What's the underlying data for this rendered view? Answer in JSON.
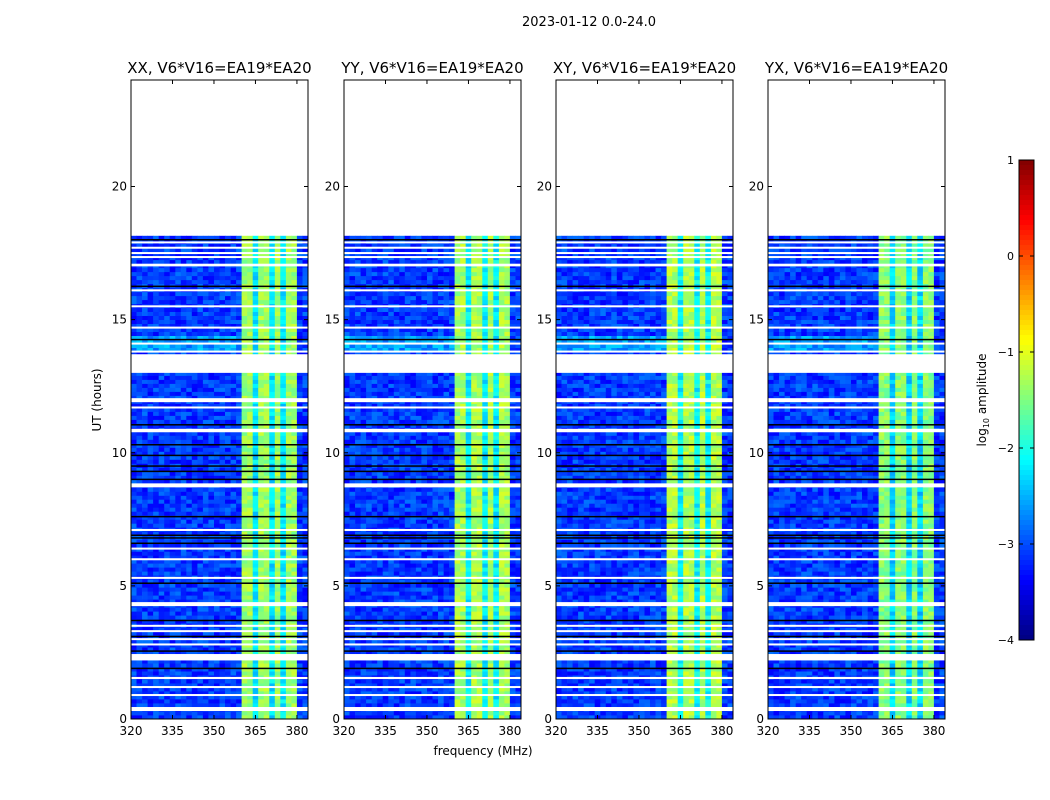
{
  "chart_data": {
    "type": "heatmap",
    "title": "2023-01-12 0.0-24.0",
    "xlabel": "frequency (MHz)",
    "ylabel": "UT (hours)",
    "xlim": [
      320,
      384
    ],
    "ylim": [
      0,
      24
    ],
    "xticks": [
      "320",
      "335",
      "350",
      "365",
      "380"
    ],
    "yticks": [
      "0",
      "5",
      "10",
      "15",
      "20"
    ],
    "colorbar": {
      "label": "log10 amplitude",
      "label_main": "log",
      "label_sub": "10",
      "label_rest": " amplitude",
      "range": [
        -4,
        1
      ],
      "ticks": [
        "1",
        "0",
        "−1",
        "−2",
        "−3",
        "−4"
      ],
      "colormap": "jet"
    },
    "data_end_hour": 18.1,
    "flagged_gaps_hours": [
      [
        17.0,
        17.1
      ],
      [
        13.0,
        13.7
      ],
      [
        11.9,
        12.05
      ],
      [
        10.77,
        10.9
      ],
      [
        8.7,
        8.85
      ],
      [
        4.24,
        4.39
      ],
      [
        2.2,
        2.44
      ],
      [
        1.5,
        1.58
      ],
      [
        0.3,
        0.45
      ]
    ],
    "thin_flag_lines_hours": [
      17.9,
      17.7,
      17.5,
      17.35,
      16.1,
      15.5,
      14.7,
      14.1,
      13.8,
      11.7,
      7.1,
      6.4,
      6.0,
      5.3,
      3.5,
      3.3,
      3.0,
      2.8,
      1.2,
      0.9
    ],
    "black_lines_hours": [
      18.0,
      16.25,
      14.25,
      11.05,
      10.3,
      9.9,
      9.5,
      9.3,
      9.0,
      7.6,
      6.9,
      6.8,
      6.6,
      5.1,
      3.7,
      3.1,
      2.55,
      1.9
    ],
    "background_log_amp": -3.1,
    "band": {
      "start_mhz": 361,
      "end_mhz": 380,
      "dark_channels_mhz": [
        365.2,
        370.2,
        375.0
      ]
    },
    "panels": [
      {
        "title": "XX, V6*V16=EA19*EA20",
        "band_log_amp": -1.35
      },
      {
        "title": "YY, V6*V16=EA19*EA20",
        "band_log_amp": -1.3
      },
      {
        "title": "XY, V6*V16=EA19*EA20",
        "band_log_amp": -1.25
      },
      {
        "title": "YX, V6*V16=EA19*EA20",
        "band_log_amp": -1.45
      }
    ]
  }
}
